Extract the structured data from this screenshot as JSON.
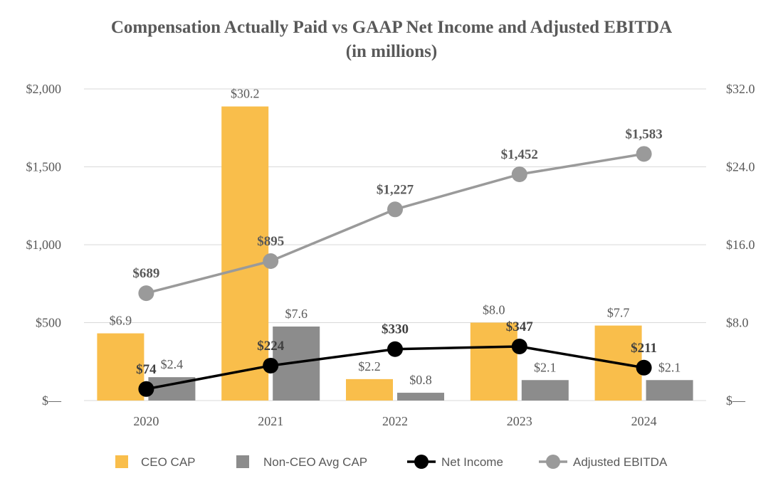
{
  "chart_data": {
    "type": "bar",
    "title": "Compensation Actually Paid vs GAAP Net Income and Adjusted EBITDA",
    "subtitle": "(in millions)",
    "categories": [
      "2020",
      "2021",
      "2022",
      "2023",
      "2024"
    ],
    "left_axis": {
      "range": [
        0,
        2000
      ],
      "ticks": [
        0,
        500,
        1000,
        1500,
        2000
      ],
      "tick_labels": [
        "$—",
        "$500",
        "$1,000",
        "$1,500",
        "$2,000"
      ]
    },
    "right_axis": {
      "range": [
        0,
        32
      ],
      "ticks": [
        0,
        8,
        16,
        24,
        32
      ],
      "tick_labels": [
        "$—",
        "$8.0",
        "$16.0",
        "$24.0",
        "$32.0"
      ]
    },
    "bar_series": [
      {
        "name": "CEO CAP",
        "axis": "right",
        "color": "#F9BE4B",
        "values": [
          6.9,
          30.2,
          2.2,
          8.0,
          7.7
        ],
        "labels": [
          "$6.9",
          "$30.2",
          "$2.2",
          "$8.0",
          "$7.7"
        ]
      },
      {
        "name": "Non-CEO Avg CAP",
        "axis": "right",
        "color": "#8C8C8C",
        "values": [
          2.4,
          7.6,
          0.8,
          2.1,
          2.1
        ],
        "labels": [
          "$2.4",
          "$7.6",
          "$0.8",
          "$2.1",
          "$2.1"
        ]
      }
    ],
    "line_series": [
      {
        "name": "Net Income",
        "axis": "left",
        "color": "#000000",
        "values": [
          74,
          224,
          330,
          347,
          211
        ],
        "labels": [
          "$74",
          "$224",
          "$330",
          "$347",
          "$211"
        ]
      },
      {
        "name": "Adjusted EBITDA",
        "axis": "left",
        "color": "#9A9A9A",
        "values": [
          689,
          895,
          1227,
          1452,
          1583
        ],
        "labels": [
          "$689",
          "$895",
          "$1,227",
          "$1,452",
          "$1,583"
        ]
      }
    ],
    "legend": {
      "position": "bottom",
      "items": [
        {
          "name": "CEO CAP",
          "kind": "bar",
          "color": "#F9BE4B"
        },
        {
          "name": "Non-CEO Avg CAP",
          "kind": "bar",
          "color": "#8C8C8C"
        },
        {
          "name": "Net Income",
          "kind": "line",
          "color": "#000000"
        },
        {
          "name": "Adjusted EBITDA",
          "kind": "line",
          "color": "#9A9A9A"
        }
      ]
    },
    "grid": true
  }
}
